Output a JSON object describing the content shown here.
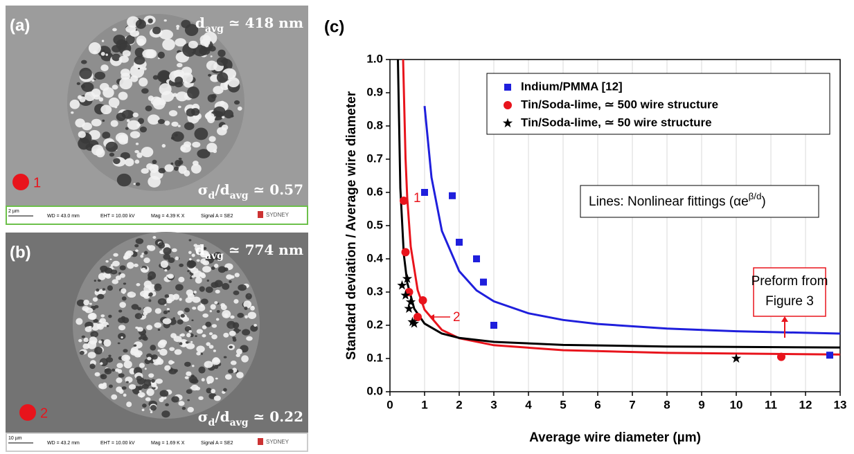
{
  "panels": [
    {
      "label": "(a)",
      "size": [
        {
          "text": "d"
        },
        {
          "text": "avg",
          "sub": true
        },
        {
          "text": " ≃ 418 nm"
        }
      ],
      "spread": [
        {
          "text": "σ"
        },
        {
          "text": "d",
          "sub": true
        },
        {
          "text": "/d"
        },
        {
          "text": "avg",
          "sub": true
        },
        {
          "text": " ≃ 0.57"
        }
      ],
      "marker": "1",
      "scale_bar": "2 µm",
      "info": [
        "WD = 43.0 mm",
        "EHT = 10.00 kV",
        "Mag = 4.39 K X",
        "Signal A = SE2"
      ],
      "logo": "SYDNEY"
    },
    {
      "label": "(b)",
      "size": [
        {
          "text": "d"
        },
        {
          "text": "avg",
          "sub": true
        },
        {
          "text": " ≃ 774 nm"
        }
      ],
      "spread": [
        {
          "text": "σ"
        },
        {
          "text": "d",
          "sub": true
        },
        {
          "text": "/d"
        },
        {
          "text": "avg",
          "sub": true
        },
        {
          "text": " ≃ 0.22"
        }
      ],
      "marker": "2",
      "scale_bar": "10 µm",
      "info": [
        "WD = 43.2 mm",
        "EHT = 10.00 kV",
        "Mag = 1.69 K X",
        "Signal A = SE2"
      ],
      "logo": "SYDNEY"
    }
  ],
  "chart_data": {
    "type": "scatter",
    "panel_label": "(c)",
    "x_label": "Average wire diameter (µm)",
    "y_label": "Standard deviation / Average wire diameter",
    "xlim": [
      0,
      13
    ],
    "xticks": [
      0,
      1,
      2,
      3,
      4,
      5,
      6,
      7,
      8,
      9,
      10,
      11,
      12,
      13
    ],
    "ylim": [
      0,
      1
    ],
    "yticks": [
      {
        "value": 0,
        "label": "0.0"
      },
      0.1,
      0.2,
      0.3,
      0.4,
      0.5,
      0.6,
      0.7,
      0.8,
      0.9,
      {
        "value": 1,
        "label": "1.0"
      }
    ],
    "grid": true,
    "legend": "top-right",
    "series": [
      {
        "name": "Indium/PMMA [12]",
        "color": "#1f1fdc",
        "marker": "square",
        "x": [
          1.0,
          1.8,
          2.0,
          2.5,
          2.7,
          3.0,
          12.7
        ],
        "values": [
          0.6,
          0.59,
          0.45,
          0.4,
          0.33,
          0.2,
          0.11
        ]
      },
      {
        "name": "Tin/Soda-lime, ≃ 500 wire structure",
        "color": "#e8141c",
        "marker": "circle",
        "x": [
          0.4,
          0.45,
          0.55,
          0.95,
          0.8,
          11.3
        ],
        "values": [
          0.575,
          0.42,
          0.3,
          0.275,
          0.225,
          0.105
        ]
      },
      {
        "name": "Tin/Soda-lime, ≃ 50 wire structure",
        "color": "#000000",
        "marker": "star",
        "x": [
          0.35,
          0.45,
          0.5,
          0.55,
          0.6,
          0.65,
          0.7,
          10
        ],
        "values": [
          0.32,
          0.29,
          0.34,
          0.25,
          0.27,
          0.21,
          0.205,
          0.1
        ]
      }
    ],
    "fits": [
      {
        "color": "#1f1fdc",
        "x": [
          1,
          1.2,
          1.5,
          2,
          2.5,
          3,
          4,
          5,
          6,
          8,
          10,
          13
        ],
        "values": [
          0.86,
          0.645,
          0.484,
          0.363,
          0.305,
          0.272,
          0.236,
          0.216,
          0.204,
          0.19,
          0.182,
          0.175
        ]
      },
      {
        "color": "#e8141c",
        "x": [
          0.38,
          0.45,
          0.5,
          0.6,
          0.8,
          1,
          1.5,
          2,
          3,
          5,
          8,
          13
        ],
        "values": [
          1.0,
          0.703,
          0.582,
          0.437,
          0.306,
          0.247,
          0.186,
          0.161,
          0.14,
          0.125,
          0.117,
          0.112
        ]
      },
      {
        "color": "#000000",
        "x": [
          0.23,
          0.3,
          0.4,
          0.5,
          0.7,
          1,
          1.5,
          2,
          3,
          5,
          8,
          13
        ],
        "values": [
          1.0,
          0.613,
          0.414,
          0.328,
          0.25,
          0.205,
          0.175,
          0.162,
          0.15,
          0.141,
          0.136,
          0.133
        ]
      }
    ],
    "annotations": {
      "point_1": "1",
      "point_2": "2",
      "fit_note": [
        {
          "text": "Lines: Nonlinear fittings (αe"
        },
        {
          "text": "β/d",
          "sup": true
        },
        {
          "text": ")"
        }
      ],
      "preform": [
        "Preform from",
        "Figure 3"
      ]
    }
  }
}
